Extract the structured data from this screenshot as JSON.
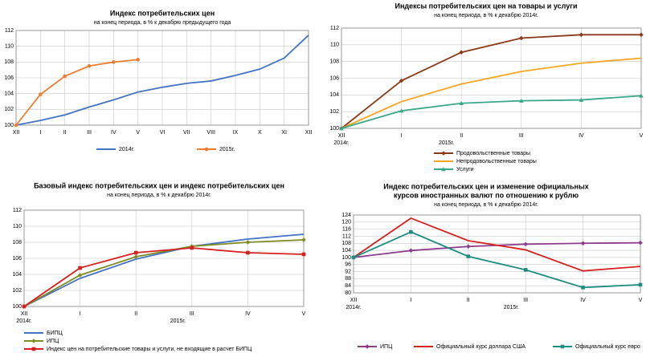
{
  "chart_data": [
    {
      "type": "line",
      "title": [
        "Индекс потребительских цен"
      ],
      "subtitle": "на конец периода, в % к декабрю предыдущего года",
      "categories": [
        "XII",
        "I",
        "II",
        "III",
        "IV",
        "V",
        "VI",
        "VII",
        "VIII",
        "IX",
        "X",
        "XI",
        "XII"
      ],
      "ylim": [
        100,
        112
      ],
      "yticks": [
        100,
        102,
        104,
        106,
        108,
        110,
        112
      ],
      "grid": true,
      "legend": "bottom-horizontal",
      "series": [
        {
          "name": "2014г.",
          "color": "#4472c4",
          "marker": "none",
          "values": [
            100,
            100.6,
            101.3,
            102.3,
            103.2,
            104.2,
            104.8,
            105.3,
            105.6,
            106.3,
            107.1,
            108.5,
            111.4
          ]
        },
        {
          "name": "2015г.",
          "color": "#ed7d31",
          "marker": "circle",
          "values": [
            100,
            103.9,
            106.2,
            107.5,
            108.0,
            108.3,
            null,
            null,
            null,
            null,
            null,
            null,
            null
          ]
        }
      ]
    },
    {
      "type": "line",
      "title": [
        "Индексы потребительских цен на товары и  услуги"
      ],
      "subtitle": "на конец периода, в % к декабрю 2014г.",
      "categories": [
        "XII",
        "I",
        "II",
        "III",
        "IV",
        "V"
      ],
      "period_labels": [
        "2014г.",
        "2015г."
      ],
      "ylim": [
        100,
        112
      ],
      "yticks": [
        100,
        102,
        104,
        106,
        108,
        110,
        112
      ],
      "grid": true,
      "legend": "bottom-vertical",
      "series": [
        {
          "name": "Продовольственные товары",
          "color": "#8b3a1a",
          "marker": "diamond",
          "values": [
            100,
            105.7,
            109.1,
            110.8,
            111.2,
            111.2
          ]
        },
        {
          "name": "Непродовольственные товары",
          "color": "#f5a623",
          "marker": "none",
          "values": [
            100,
            103.2,
            105.3,
            106.8,
            107.8,
            108.4
          ]
        },
        {
          "name": "Услуги",
          "color": "#3aa68a",
          "marker": "triangle",
          "values": [
            100,
            102.1,
            103.0,
            103.3,
            103.4,
            103.9
          ]
        }
      ]
    },
    {
      "type": "line",
      "title": [
        "Базовый индекс потребительских цен и индекс потребительских цен"
      ],
      "subtitle": "на конец периода, в % к декабрю 2014г.",
      "categories": [
        "XII",
        "I",
        "II",
        "III",
        "IV",
        "V"
      ],
      "period_labels": [
        "2014г.",
        "2015г."
      ],
      "ylim": [
        100,
        112
      ],
      "yticks": [
        100,
        102,
        104,
        106,
        108,
        110,
        112
      ],
      "grid": true,
      "legend": "bottom-vertical",
      "series": [
        {
          "name": "БИПЦ",
          "color": "#4472c4",
          "marker": "none",
          "values": [
            100,
            103.5,
            105.9,
            107.5,
            108.4,
            109.0
          ]
        },
        {
          "name": "ИПЦ",
          "color": "#7f8c1f",
          "marker": "diamond",
          "values": [
            100,
            103.9,
            106.2,
            107.5,
            108.0,
            108.3
          ]
        },
        {
          "name": "Индекс цен на потребительские товары и услуги, не входящие в расчет БИПЦ",
          "color": "#d62020",
          "marker": "square",
          "values": [
            100,
            104.8,
            106.7,
            107.3,
            106.7,
            106.5
          ]
        }
      ]
    },
    {
      "type": "line",
      "title": [
        "Индекс потребительских цен и изменение официальных",
        "курсов иностранных валют по отношению к рублю"
      ],
      "subtitle": "на конец периода, в % к декабрю 2014г.",
      "categories": [
        "XII",
        "I",
        "II",
        "III",
        "IV",
        "V"
      ],
      "period_labels": [
        "2014г.",
        "2015г."
      ],
      "ylim": [
        80,
        124
      ],
      "yticks": [
        80,
        84,
        88,
        92,
        96,
        100,
        104,
        108,
        112,
        116,
        120,
        124
      ],
      "grid": true,
      "legend": "bottom-horizontal",
      "series": [
        {
          "name": "ИПЦ",
          "color": "#8e3b8e",
          "marker": "diamond",
          "values": [
            100,
            103.9,
            106.2,
            107.5,
            108.0,
            108.3
          ]
        },
        {
          "name": "Официальный курс доллара США",
          "color": "#d62020",
          "marker": "none",
          "values": [
            100,
            122.2,
            109.5,
            104.3,
            92.4,
            94.9
          ]
        },
        {
          "name": "Официальный курс евро",
          "color": "#1f8c80",
          "marker": "square",
          "values": [
            100,
            114.4,
            100.6,
            93.0,
            83.0,
            84.6
          ]
        }
      ]
    }
  ]
}
